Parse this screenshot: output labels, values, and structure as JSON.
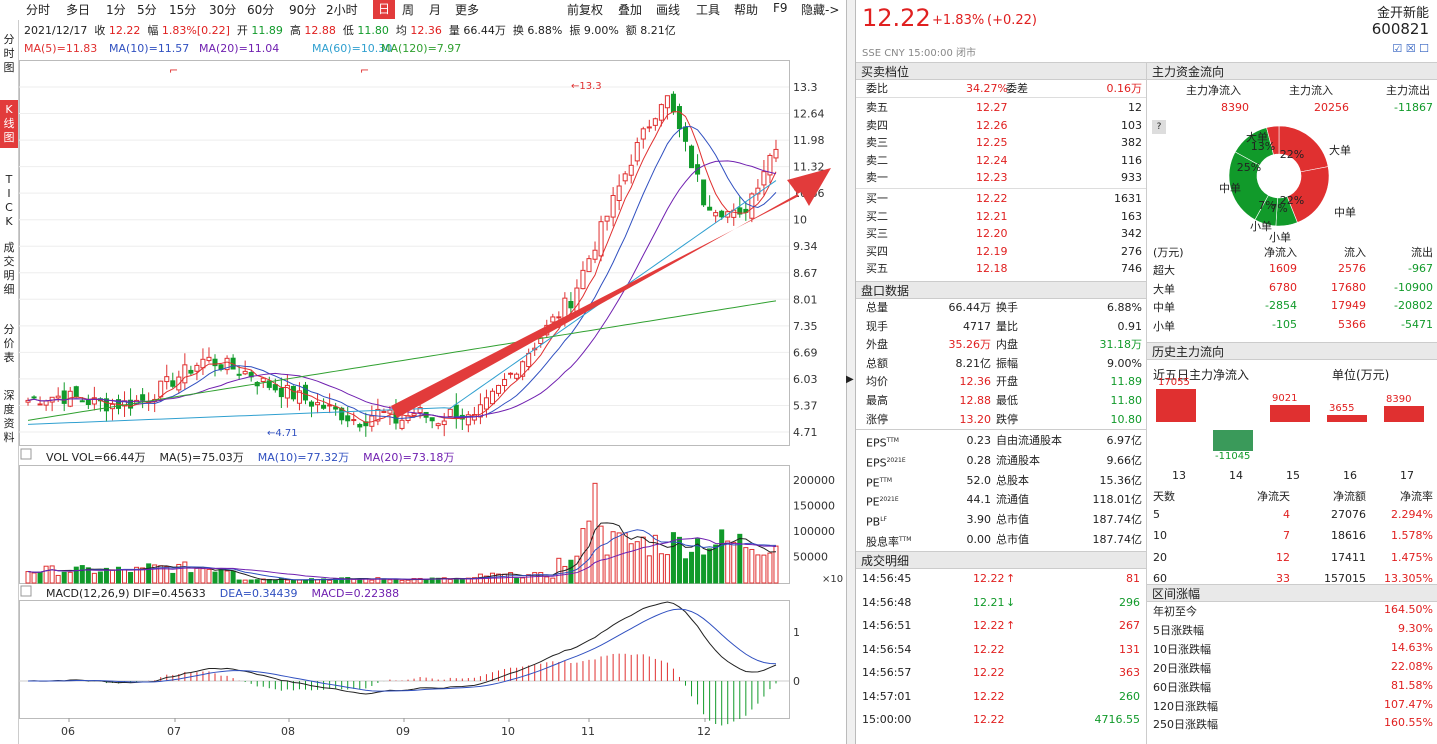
{
  "toolbar": {
    "items": [
      "分时",
      "多日",
      "1分",
      "5分",
      "15分",
      "30分",
      "60分",
      "90分",
      "2小时",
      "日",
      "周",
      "月",
      "更多"
    ],
    "selected": "日",
    "right": [
      "前复权",
      "叠加",
      "画线",
      "工具",
      "帮助",
      "F9",
      "隐藏->"
    ]
  },
  "sidebar": {
    "items": [
      "分\n时\n图",
      "K\n线\n图",
      "T\nI\nC\nK",
      "成\n交\n明\n细",
      "分\n价\n表",
      "深\n度\n资\n料"
    ],
    "selected": "K\n线\n图"
  },
  "quote_line": {
    "date": "2021/12/17",
    "close_label": "收",
    "close": "12.22",
    "change_label": "幅",
    "change": "1.83%[0.22]",
    "open_label": "开",
    "open": "11.89",
    "high_label": "高",
    "high": "12.88",
    "low_label": "低",
    "low": "11.80",
    "avg_label": "均",
    "avg": "12.36",
    "vol_label": "量",
    "vol": "66.44万",
    "turnover_label": "换",
    "turnover": "6.88%",
    "amp_label": "振",
    "amp": "9.00%",
    "amount_label": "额",
    "amount": "8.21亿"
  },
  "ma_line": [
    {
      "text": "MA(5)=11.83",
      "color": "#e03030"
    },
    {
      "text": "MA(10)=11.57",
      "color": "#3050c0"
    },
    {
      "text": "MA(20)=11.04",
      "color": "#7020b0"
    },
    {
      "text": "MA(60)=10.30",
      "color": "#30a0d0"
    },
    {
      "text": "MA(120)=7.97",
      "color": "#30a030"
    }
  ],
  "kline_axis": [
    "13.3",
    "12.64",
    "11.98",
    "11.32",
    "10.66",
    "10",
    "9.34",
    "8.67",
    "8.01",
    "7.35",
    "6.69",
    "6.03",
    "5.37",
    "4.71"
  ],
  "kline_marks": {
    "high": "←13.3",
    "low": "←4.71"
  },
  "vol_line": {
    "label": "VOL",
    "vol": "VOL=66.44万",
    "ma5": "MA(5)=75.03万",
    "ma10": "MA(10)=77.32万",
    "ma20": "MA(20)=73.18万"
  },
  "vol_axis": [
    "200000",
    "150000",
    "100000",
    "50000"
  ],
  "vol_unit": "×10",
  "macd_line": {
    "label": "MACD(12,26,9)",
    "dif": "DIF=0.45633",
    "dea": "DEA=0.34439",
    "macd": "MACD=0.22388"
  },
  "macd_axis": [
    "1",
    "0"
  ],
  "months": [
    "06",
    "07",
    "08",
    "09",
    "10",
    "11",
    "12"
  ],
  "stock": {
    "price": "12.22",
    "change": "+1.83%",
    "delta": "(+0.22)",
    "name": "金开新能",
    "code": "600821",
    "exchange": "SSE  CNY  15:00:00  闭市"
  },
  "orderbook": {
    "title": "买卖档位",
    "weibi_label": "委比",
    "weibi": "34.27%",
    "weicha_label": "委差",
    "weicha": "0.16万",
    "asks": [
      [
        "卖五",
        "12.27",
        "12"
      ],
      [
        "卖四",
        "12.26",
        "103"
      ],
      [
        "卖三",
        "12.25",
        "382"
      ],
      [
        "卖二",
        "12.24",
        "116"
      ],
      [
        "卖一",
        "12.23",
        "933"
      ]
    ],
    "bids": [
      [
        "买一",
        "12.22",
        "1631"
      ],
      [
        "买二",
        "12.21",
        "163"
      ],
      [
        "买三",
        "12.20",
        "342"
      ],
      [
        "买四",
        "12.19",
        "276"
      ],
      [
        "买五",
        "12.18",
        "746"
      ]
    ]
  },
  "pankou": {
    "title": "盘口数据",
    "rows": [
      [
        "总量",
        "66.44万",
        "换手",
        "6.88%"
      ],
      [
        "现手",
        "4717",
        "量比",
        "0.91"
      ],
      [
        "外盘",
        "35.26万",
        "内盘",
        "31.18万"
      ],
      [
        "总额",
        "8.21亿",
        "振幅",
        "9.00%"
      ],
      [
        "均价",
        "12.36",
        "开盘",
        "11.89"
      ],
      [
        "最高",
        "12.88",
        "最低",
        "11.80"
      ],
      [
        "涨停",
        "13.20",
        "跌停",
        "10.80"
      ]
    ]
  },
  "fin": {
    "rows": [
      [
        "EPS",
        "TTM",
        "0.23",
        "自由流通股本",
        "6.97亿"
      ],
      [
        "EPS",
        "2021E",
        "0.28",
        "流通股本",
        "9.66亿"
      ],
      [
        "PE",
        "TTM",
        "52.0",
        "总股本",
        "15.36亿"
      ],
      [
        "PE",
        "2021E",
        "44.1",
        "流通值",
        "118.01亿"
      ],
      [
        "PB",
        "LF",
        "3.90",
        "总市值",
        "187.74亿"
      ],
      [
        "股息率",
        "TTM",
        "0.00",
        "总市值",
        "187.74亿"
      ]
    ]
  },
  "ticks": {
    "title": "成交明细",
    "rows": [
      [
        "14:56:45",
        "12.22",
        "up",
        "81"
      ],
      [
        "14:56:48",
        "12.21",
        "down",
        "296"
      ],
      [
        "14:56:51",
        "12.22",
        "up",
        "267"
      ],
      [
        "14:56:54",
        "12.22",
        "",
        "131"
      ],
      [
        "14:56:57",
        "12.22",
        "",
        "363"
      ],
      [
        "14:57:01",
        "12.22",
        "",
        "260"
      ],
      [
        "15:00:00",
        "12.22",
        "",
        "4716.55"
      ]
    ]
  },
  "flow": {
    "title": "主力资金流向",
    "heads": [
      "主力净流入",
      "主力流入",
      "主力流出"
    ],
    "vals": [
      "8390",
      "20256",
      "-11867"
    ],
    "help": "?",
    "pie": {
      "labels": [
        "大单",
        "大单",
        "中单",
        "中单",
        "小单",
        "小单"
      ],
      "pcts": [
        "13%",
        "22%",
        "25%",
        "22%",
        "7%",
        "7%"
      ]
    },
    "table_head": [
      "(万元)",
      "净流入",
      "流入",
      "流出"
    ],
    "table": [
      [
        "超大",
        "1609",
        "2576",
        "-967"
      ],
      [
        "大单",
        "6780",
        "17680",
        "-10900"
      ],
      [
        "中单",
        "-2854",
        "17949",
        "-20802"
      ],
      [
        "小单",
        "-105",
        "5366",
        "-5471"
      ]
    ]
  },
  "hist": {
    "title": "历史主力流向",
    "sub": "近五日主力净流入",
    "unit": "单位(万元)",
    "bars": [
      {
        "day": "13",
        "value": 17055
      },
      {
        "day": "14",
        "value": -11045
      },
      {
        "day": "15",
        "value": 9021
      },
      {
        "day": "16",
        "value": 3655
      },
      {
        "day": "17",
        "value": 8390
      }
    ],
    "table_head": [
      "天数",
      "净流天",
      "净流额",
      "净流率"
    ],
    "table": [
      [
        "5",
        "4",
        "27076",
        "2.294%"
      ],
      [
        "10",
        "7",
        "18616",
        "1.578%"
      ],
      [
        "20",
        "12",
        "17411",
        "1.475%"
      ],
      [
        "60",
        "33",
        "157015",
        "13.305%"
      ]
    ]
  },
  "range": {
    "title": "区间涨幅",
    "rows": [
      [
        "年初至今",
        "164.50%"
      ],
      [
        "5日涨跌幅",
        "9.30%"
      ],
      [
        "10日涨跌幅",
        "14.63%"
      ],
      [
        "20日涨跌幅",
        "22.08%"
      ],
      [
        "60日涨跌幅",
        "81.58%"
      ],
      [
        "120日涨跌幅",
        "107.47%"
      ],
      [
        "250日涨跌幅",
        "160.55%"
      ]
    ]
  }
}
